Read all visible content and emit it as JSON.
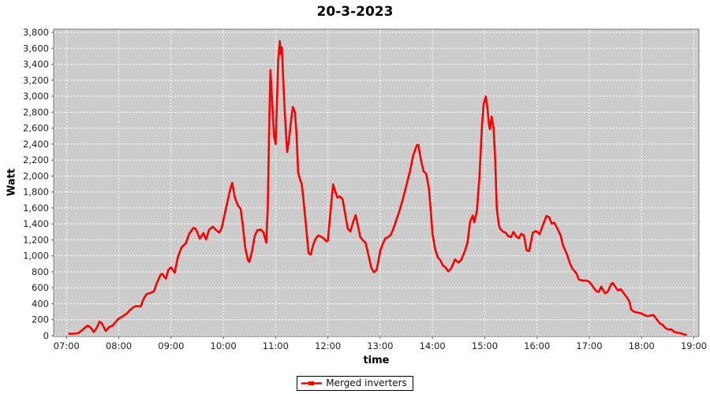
{
  "window": {
    "title": "20-3-2023"
  },
  "colors": {
    "background": "#ffffff",
    "plot_bg": "#cccccc",
    "plot_border": "#777777",
    "grid": "#ffffff",
    "tick": "#666666",
    "tick_label": "#222222",
    "series_red": "#ff0000"
  },
  "chart_data": {
    "type": "line",
    "title": "20-3-2023",
    "xlabel": "time",
    "ylabel": "Watt",
    "grid": "white dashed gridlines on gray plot background",
    "legend_position": "bottom-center",
    "xlim_hours": [
      6.76,
      19.1
    ],
    "ylim": [
      0,
      3800
    ],
    "x_ticks": [
      "07:00",
      "08:00",
      "09:00",
      "10:00",
      "11:00",
      "12:00",
      "13:00",
      "14:00",
      "15:00",
      "16:00",
      "17:00",
      "18:00",
      "19:00"
    ],
    "x_tick_hours": [
      7,
      8,
      9,
      10,
      11,
      12,
      13,
      14,
      15,
      16,
      17,
      18,
      19
    ],
    "y_ticks": [
      "0",
      "200",
      "400",
      "600",
      "800",
      "1,000",
      "1,200",
      "1,400",
      "1,600",
      "1,800",
      "2,000",
      "2,200",
      "2,400",
      "2,600",
      "2,800",
      "3,000",
      "3,200",
      "3,400",
      "3,600",
      "3,800"
    ],
    "y_tick_values": [
      0,
      200,
      400,
      600,
      800,
      1000,
      1200,
      1400,
      1600,
      1800,
      2000,
      2200,
      2400,
      2600,
      2800,
      3000,
      3200,
      3400,
      3600,
      3800
    ],
    "legend": {
      "label": "Merged inverters",
      "color": "#ff0000"
    },
    "series": [
      {
        "name": "Merged inverters",
        "color": "#ff0000",
        "x_unit": "hour_of_day_decimal",
        "y_unit": "Watt",
        "points": [
          [
            7.05,
            25
          ],
          [
            7.13,
            25
          ],
          [
            7.22,
            30
          ],
          [
            7.3,
            70
          ],
          [
            7.4,
            125
          ],
          [
            7.45,
            110
          ],
          [
            7.52,
            45
          ],
          [
            7.58,
            100
          ],
          [
            7.63,
            175
          ],
          [
            7.67,
            160
          ],
          [
            7.75,
            60
          ],
          [
            7.82,
            110
          ],
          [
            7.88,
            125
          ],
          [
            7.95,
            180
          ],
          [
            8.0,
            215
          ],
          [
            8.08,
            245
          ],
          [
            8.15,
            275
          ],
          [
            8.22,
            325
          ],
          [
            8.3,
            365
          ],
          [
            8.35,
            370
          ],
          [
            8.42,
            365
          ],
          [
            8.47,
            455
          ],
          [
            8.53,
            520
          ],
          [
            8.6,
            535
          ],
          [
            8.67,
            555
          ],
          [
            8.73,
            660
          ],
          [
            8.8,
            765
          ],
          [
            8.83,
            775
          ],
          [
            8.9,
            715
          ],
          [
            8.95,
            825
          ],
          [
            9.0,
            855
          ],
          [
            9.07,
            790
          ],
          [
            9.13,
            985
          ],
          [
            9.2,
            1105
          ],
          [
            9.28,
            1155
          ],
          [
            9.35,
            1280
          ],
          [
            9.43,
            1350
          ],
          [
            9.47,
            1340
          ],
          [
            9.55,
            1215
          ],
          [
            9.62,
            1285
          ],
          [
            9.67,
            1205
          ],
          [
            9.73,
            1330
          ],
          [
            9.8,
            1365
          ],
          [
            9.85,
            1330
          ],
          [
            9.92,
            1290
          ],
          [
            9.97,
            1350
          ],
          [
            10.0,
            1445
          ],
          [
            10.07,
            1650
          ],
          [
            10.13,
            1830
          ],
          [
            10.17,
            1915
          ],
          [
            10.22,
            1730
          ],
          [
            10.28,
            1630
          ],
          [
            10.33,
            1590
          ],
          [
            10.37,
            1400
          ],
          [
            10.42,
            1100
          ],
          [
            10.47,
            945
          ],
          [
            10.5,
            925
          ],
          [
            10.55,
            1060
          ],
          [
            10.6,
            1250
          ],
          [
            10.65,
            1320
          ],
          [
            10.72,
            1330
          ],
          [
            10.77,
            1290
          ],
          [
            10.82,
            1165
          ],
          [
            10.85,
            1600
          ],
          [
            10.88,
            2700
          ],
          [
            10.9,
            3325
          ],
          [
            10.93,
            2980
          ],
          [
            10.97,
            2500
          ],
          [
            11.0,
            2400
          ],
          [
            11.02,
            2800
          ],
          [
            11.05,
            3450
          ],
          [
            11.08,
            3690
          ],
          [
            11.1,
            3530
          ],
          [
            11.12,
            3610
          ],
          [
            11.15,
            3150
          ],
          [
            11.18,
            2740
          ],
          [
            11.22,
            2300
          ],
          [
            11.25,
            2420
          ],
          [
            11.3,
            2720
          ],
          [
            11.33,
            2865
          ],
          [
            11.37,
            2800
          ],
          [
            11.4,
            2520
          ],
          [
            11.43,
            2045
          ],
          [
            11.47,
            1950
          ],
          [
            11.5,
            1900
          ],
          [
            11.53,
            1720
          ],
          [
            11.57,
            1450
          ],
          [
            11.6,
            1250
          ],
          [
            11.63,
            1035
          ],
          [
            11.67,
            1015
          ],
          [
            11.72,
            1140
          ],
          [
            11.77,
            1220
          ],
          [
            11.82,
            1255
          ],
          [
            11.87,
            1240
          ],
          [
            11.92,
            1220
          ],
          [
            11.97,
            1180
          ],
          [
            12.0,
            1190
          ],
          [
            12.05,
            1560
          ],
          [
            12.1,
            1895
          ],
          [
            12.14,
            1810
          ],
          [
            12.18,
            1730
          ],
          [
            12.23,
            1745
          ],
          [
            12.28,
            1710
          ],
          [
            12.33,
            1530
          ],
          [
            12.38,
            1340
          ],
          [
            12.43,
            1305
          ],
          [
            12.48,
            1420
          ],
          [
            12.53,
            1510
          ],
          [
            12.58,
            1360
          ],
          [
            12.62,
            1235
          ],
          [
            12.67,
            1195
          ],
          [
            12.72,
            1165
          ],
          [
            12.78,
            1000
          ],
          [
            12.83,
            850
          ],
          [
            12.88,
            795
          ],
          [
            12.93,
            820
          ],
          [
            12.97,
            950
          ],
          [
            13.0,
            1060
          ],
          [
            13.05,
            1150
          ],
          [
            13.1,
            1220
          ],
          [
            13.15,
            1235
          ],
          [
            13.2,
            1260
          ],
          [
            13.25,
            1335
          ],
          [
            13.3,
            1430
          ],
          [
            13.37,
            1565
          ],
          [
            13.43,
            1700
          ],
          [
            13.5,
            1880
          ],
          [
            13.57,
            2060
          ],
          [
            13.63,
            2255
          ],
          [
            13.7,
            2385
          ],
          [
            13.73,
            2390
          ],
          [
            13.78,
            2200
          ],
          [
            13.83,
            2060
          ],
          [
            13.88,
            2030
          ],
          [
            13.93,
            1850
          ],
          [
            13.97,
            1550
          ],
          [
            14.0,
            1280
          ],
          [
            14.05,
            1090
          ],
          [
            14.1,
            985
          ],
          [
            14.15,
            945
          ],
          [
            14.2,
            880
          ],
          [
            14.25,
            855
          ],
          [
            14.3,
            805
          ],
          [
            14.35,
            835
          ],
          [
            14.4,
            905
          ],
          [
            14.43,
            955
          ],
          [
            14.5,
            915
          ],
          [
            14.55,
            950
          ],
          [
            14.62,
            1060
          ],
          [
            14.67,
            1165
          ],
          [
            14.72,
            1430
          ],
          [
            14.77,
            1505
          ],
          [
            14.8,
            1420
          ],
          [
            14.85,
            1560
          ],
          [
            14.9,
            2000
          ],
          [
            14.95,
            2650
          ],
          [
            14.98,
            2905
          ],
          [
            15.02,
            2995
          ],
          [
            15.05,
            2860
          ],
          [
            15.08,
            2640
          ],
          [
            15.1,
            2585
          ],
          [
            15.13,
            2745
          ],
          [
            15.17,
            2600
          ],
          [
            15.2,
            2210
          ],
          [
            15.23,
            1600
          ],
          [
            15.27,
            1380
          ],
          [
            15.3,
            1335
          ],
          [
            15.35,
            1305
          ],
          [
            15.4,
            1290
          ],
          [
            15.45,
            1245
          ],
          [
            15.5,
            1235
          ],
          [
            15.55,
            1300
          ],
          [
            15.6,
            1245
          ],
          [
            15.65,
            1220
          ],
          [
            15.7,
            1275
          ],
          [
            15.75,
            1255
          ],
          [
            15.8,
            1070
          ],
          [
            15.85,
            1060
          ],
          [
            15.92,
            1290
          ],
          [
            15.97,
            1310
          ],
          [
            16.0,
            1305
          ],
          [
            16.05,
            1270
          ],
          [
            16.12,
            1400
          ],
          [
            16.18,
            1500
          ],
          [
            16.23,
            1485
          ],
          [
            16.28,
            1405
          ],
          [
            16.33,
            1415
          ],
          [
            16.4,
            1330
          ],
          [
            16.45,
            1255
          ],
          [
            16.5,
            1125
          ],
          [
            16.57,
            1025
          ],
          [
            16.63,
            905
          ],
          [
            16.68,
            835
          ],
          [
            16.75,
            785
          ],
          [
            16.8,
            705
          ],
          [
            16.87,
            690
          ],
          [
            16.93,
            690
          ],
          [
            16.97,
            685
          ],
          [
            17.0,
            675
          ],
          [
            17.07,
            615
          ],
          [
            17.13,
            560
          ],
          [
            17.18,
            548
          ],
          [
            17.23,
            615
          ],
          [
            17.3,
            532
          ],
          [
            17.35,
            548
          ],
          [
            17.42,
            648
          ],
          [
            17.45,
            660
          ],
          [
            17.52,
            590
          ],
          [
            17.55,
            568
          ],
          [
            17.6,
            582
          ],
          [
            17.67,
            522
          ],
          [
            17.72,
            480
          ],
          [
            17.77,
            425
          ],
          [
            17.8,
            330
          ],
          [
            17.85,
            302
          ],
          [
            17.9,
            292
          ],
          [
            17.95,
            285
          ],
          [
            18.0,
            278
          ],
          [
            18.05,
            258
          ],
          [
            18.12,
            245
          ],
          [
            18.18,
            255
          ],
          [
            18.23,
            258
          ],
          [
            18.3,
            195
          ],
          [
            18.35,
            152
          ],
          [
            18.4,
            138
          ],
          [
            18.45,
            100
          ],
          [
            18.5,
            78
          ],
          [
            18.57,
            80
          ],
          [
            18.62,
            48
          ],
          [
            18.68,
            38
          ],
          [
            18.75,
            30
          ],
          [
            18.82,
            15
          ],
          [
            18.85,
            12
          ]
        ]
      }
    ]
  }
}
